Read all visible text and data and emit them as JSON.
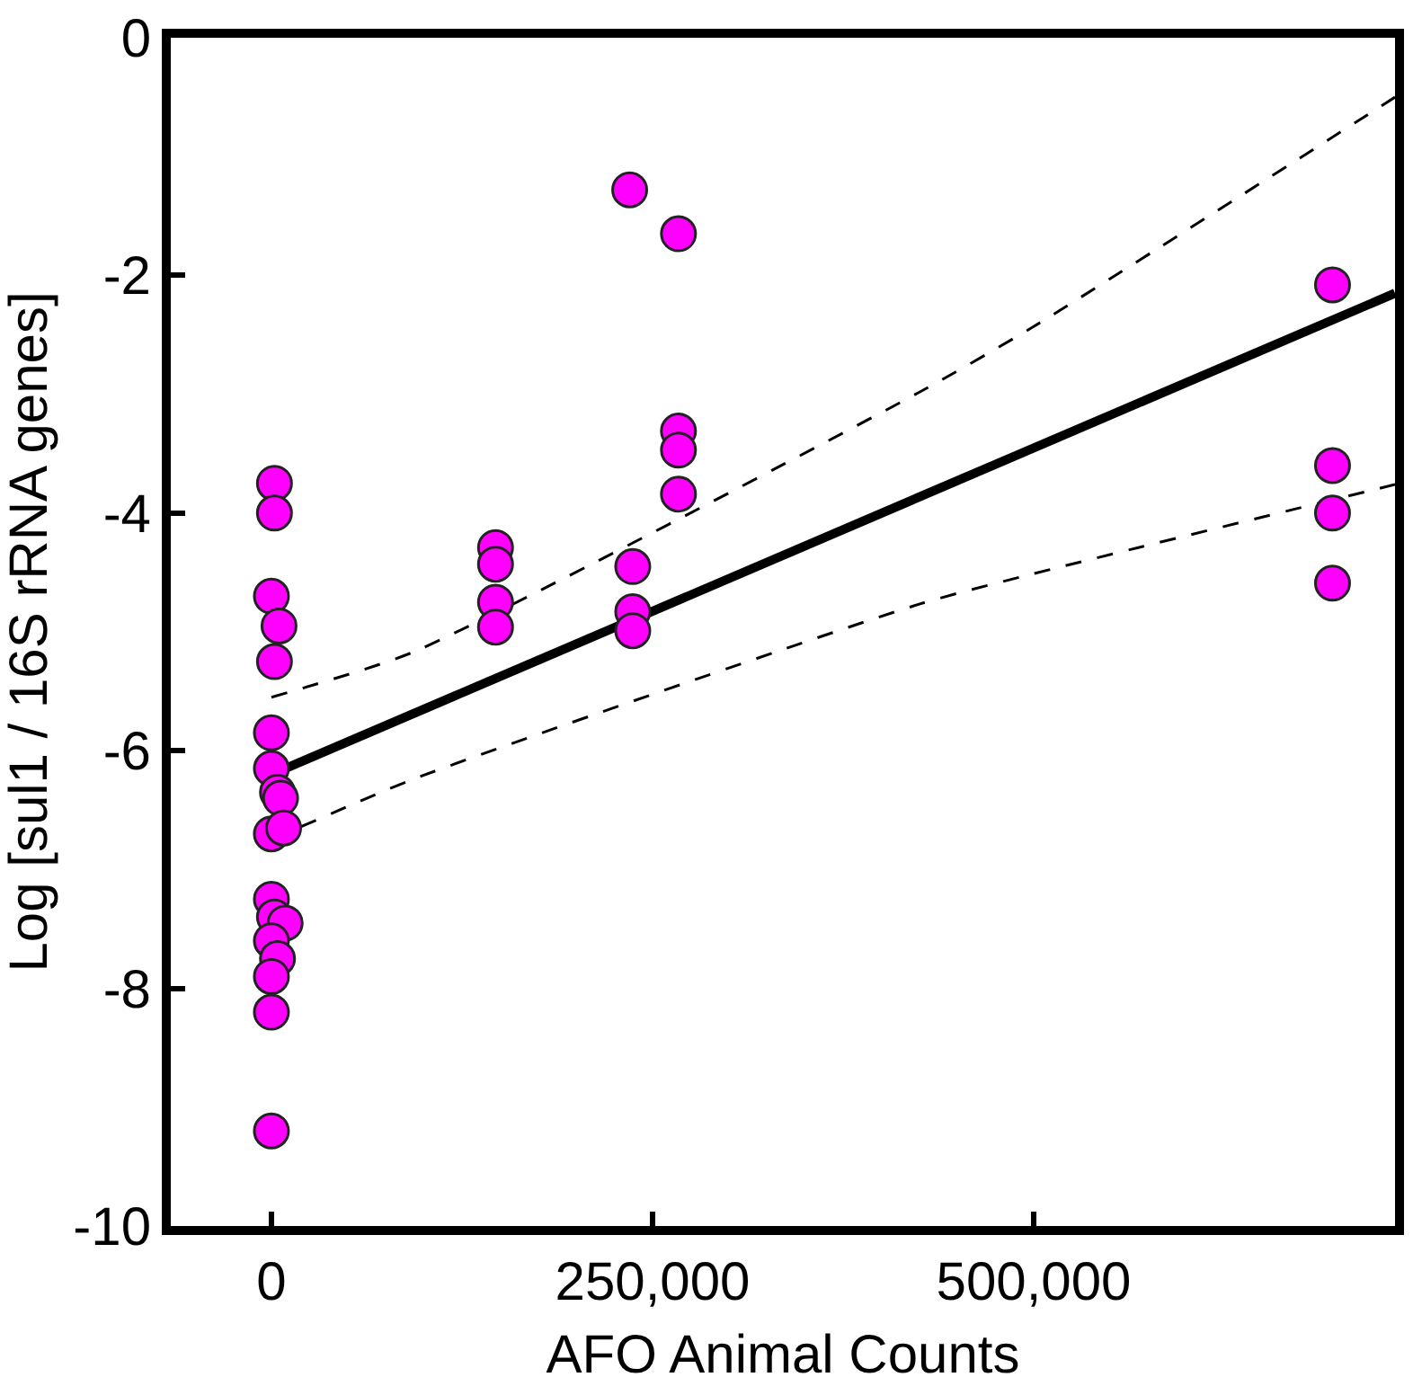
{
  "chart_data": {
    "type": "scatter",
    "xlabel": "AFO Animal Counts",
    "ylabel": "Log [sul1 / 16S rRNA genes]",
    "xlim": [
      -66000,
      737000
    ],
    "xticks": [
      0,
      {
        "value": 250000,
        "label": "250,000"
      },
      {
        "value": 500000,
        "label": "500,000"
      }
    ],
    "ylim": [
      -10,
      0
    ],
    "yticks": [
      0,
      -2,
      -4,
      -6,
      -8,
      -10
    ],
    "series": [
      {
        "type": "line",
        "color": "#000000",
        "line_style": "dashed",
        "marker": "none",
        "x": [
          0,
          93000,
          424000,
          500000,
          737000
        ],
        "values": [
          -5.55,
          -5.17,
          -2.99,
          -2.43,
          -0.5
        ]
      },
      {
        "type": "line",
        "color": "#000000",
        "line_style": "dashed",
        "marker": "none",
        "x": [
          0,
          93000,
          424000,
          500000,
          737000
        ],
        "values": [
          -6.75,
          -6.24,
          -4.77,
          -4.51,
          -3.76
        ]
      },
      {
        "type": "line",
        "color": "#000000",
        "line_style": "solid",
        "marker": "none",
        "x": [
          0,
          737000
        ],
        "values": [
          -6.2,
          -2.15
        ]
      },
      {
        "color": "#ff00ff",
        "marker": "circle",
        "x": [
          2000,
          2000,
          0,
          5000,
          2000,
          0,
          0,
          4000,
          6000,
          0,
          8000,
          0,
          2000,
          9000,
          0,
          4000,
          0,
          0,
          0,
          147000,
          147000,
          147000,
          147000,
          237000,
          237000,
          237000,
          235000,
          267000,
          267000,
          267000,
          267000,
          696000,
          696000,
          696000,
          696000
        ],
        "values": [
          -3.75,
          -4.0,
          -4.7,
          -4.95,
          -5.25,
          -5.85,
          -6.15,
          -6.35,
          -6.4,
          -6.7,
          -6.65,
          -7.25,
          -7.4,
          -7.45,
          -7.6,
          -7.75,
          -7.9,
          -8.2,
          -9.2,
          -4.29,
          -4.43,
          -4.75,
          -4.96,
          -4.45,
          -4.83,
          -4.99,
          -1.28,
          -1.65,
          -3.31,
          -3.47,
          -3.84,
          -2.08,
          -3.6,
          -4.0,
          -4.59
        ]
      }
    ]
  }
}
